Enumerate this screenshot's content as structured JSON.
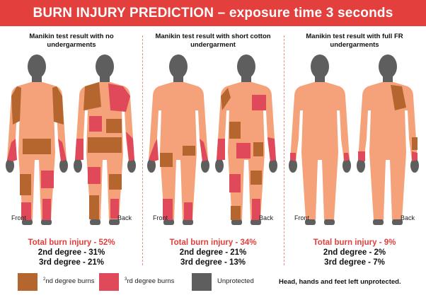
{
  "title": "BURN INJURY PREDICTION – exposure time 3 seconds",
  "labels": {
    "front": "Front",
    "back": "Back"
  },
  "panels": [
    {
      "title": "Manikin test result with no undergarments",
      "total": "Total burn injury - 52%",
      "second": "2nd degree - 31%",
      "third": "3rd degree - 21%"
    },
    {
      "title": "Manikin test result with short cotton undergarment",
      "total": "Total burn injury - 34%",
      "second": "2nd degree - 21%",
      "third": "3rd degree - 13%"
    },
    {
      "title": "Manikin test result with full FR undergarments",
      "total": "Total burn injury - 9%",
      "second": "2nd degree - 2%",
      "third": "3rd degree - 7%"
    }
  ],
  "legend": {
    "second_num": "2",
    "second_suffix": "nd degree burns",
    "third_num": "3",
    "third_suffix": "rd degree burns",
    "unprotected": "Unprotected",
    "note": "Head, hands and feet left unprotected."
  },
  "colors": {
    "banner": "#e33f3c",
    "skin": "#f5a27a",
    "second_degree": "#b5652e",
    "third_degree": "#e0495a",
    "unprotected": "#5e5e5e",
    "total_text": "#e33f3c"
  }
}
